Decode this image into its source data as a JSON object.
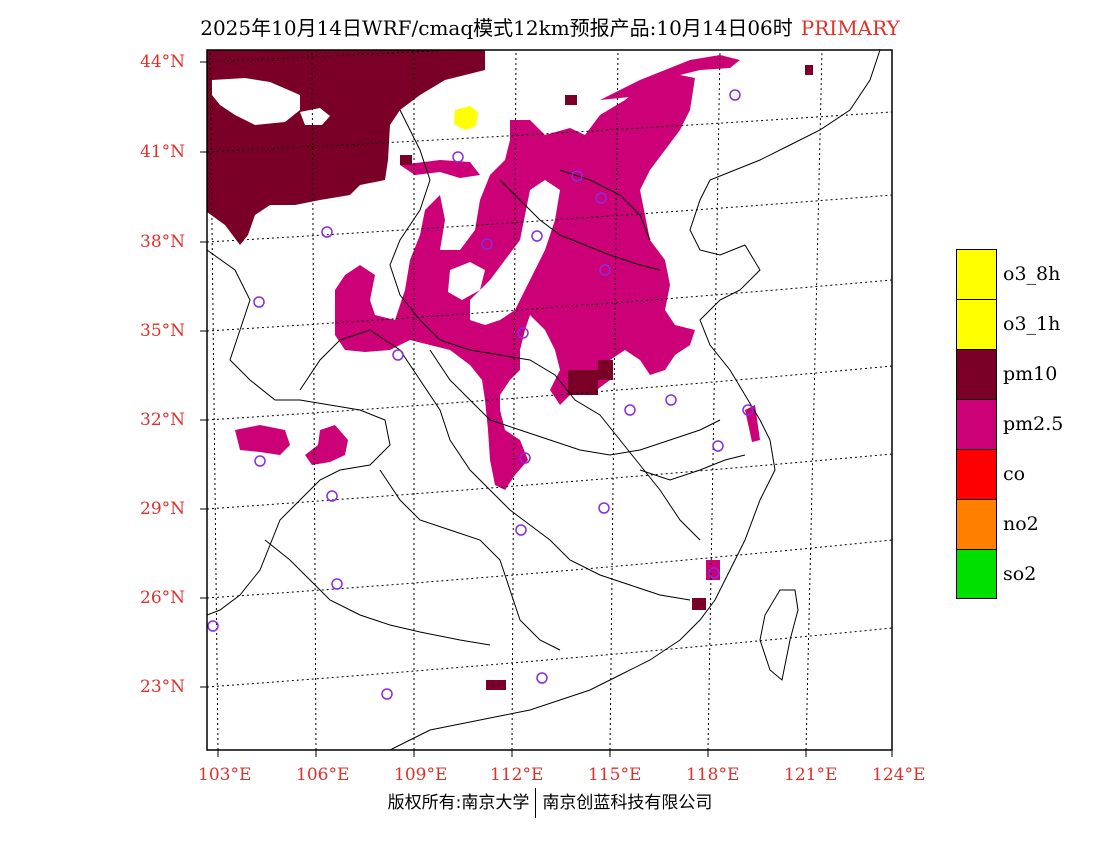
{
  "title": {
    "main": "2025年10月14日WRF/cmaq模式12km预报产品:10月14日06时",
    "tag": "PRIMARY"
  },
  "lat_labels": [
    "44°N",
    "41°N",
    "38°N",
    "35°N",
    "32°N",
    "29°N",
    "26°N",
    "23°N"
  ],
  "lon_labels": [
    "103°E",
    "106°E",
    "109°E",
    "112°E",
    "115°E",
    "118°E",
    "121°E",
    "124°E"
  ],
  "legend": [
    {
      "label": "o3_8h",
      "color": "#ffff00"
    },
    {
      "label": "o3_1h",
      "color": "#ffff00"
    },
    {
      "label": "pm10",
      "color": "#7a0028"
    },
    {
      "label": "pm2.5",
      "color": "#cc0077"
    },
    {
      "label": "co",
      "color": "#ff0000"
    },
    {
      "label": "no2",
      "color": "#ff8000"
    },
    {
      "label": "so2",
      "color": "#00e000"
    }
  ],
  "footer": {
    "left": "版权所有:南京大学",
    "right": "南京创蓝科技有限公司"
  }
}
